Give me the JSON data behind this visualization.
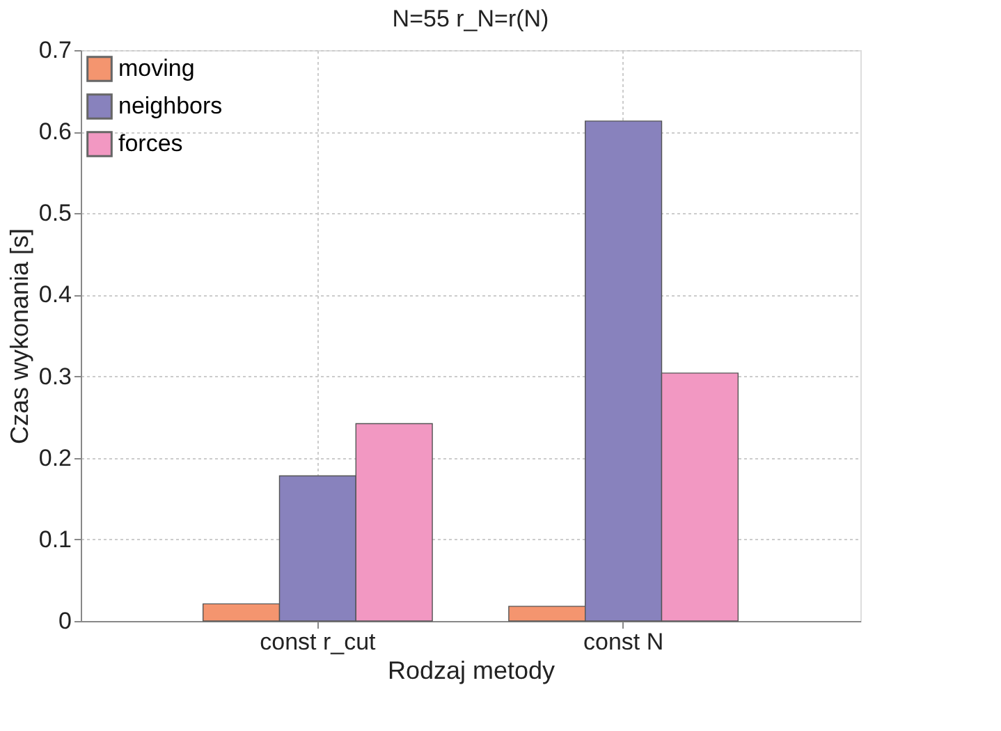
{
  "chart_data": {
    "type": "bar",
    "title": "N=55    r_N=r(N)",
    "xlabel": "Rodzaj metody",
    "ylabel": "Czas wykonania [s]",
    "categories": [
      "const r_cut",
      "const N"
    ],
    "series": [
      {
        "name": "moving",
        "color": "#f4956f",
        "values": [
          0.021,
          0.018
        ]
      },
      {
        "name": "neighbors",
        "color": "#8882bd",
        "values": [
          0.178,
          0.613
        ]
      },
      {
        "name": "forces",
        "color": "#f298c2",
        "values": [
          0.242,
          0.304
        ]
      }
    ],
    "ylim": [
      0,
      0.7
    ],
    "yticks": [
      0,
      0.1,
      0.2,
      0.3,
      0.4,
      0.5,
      0.6,
      0.7
    ],
    "grid": true,
    "legend": "top left"
  }
}
